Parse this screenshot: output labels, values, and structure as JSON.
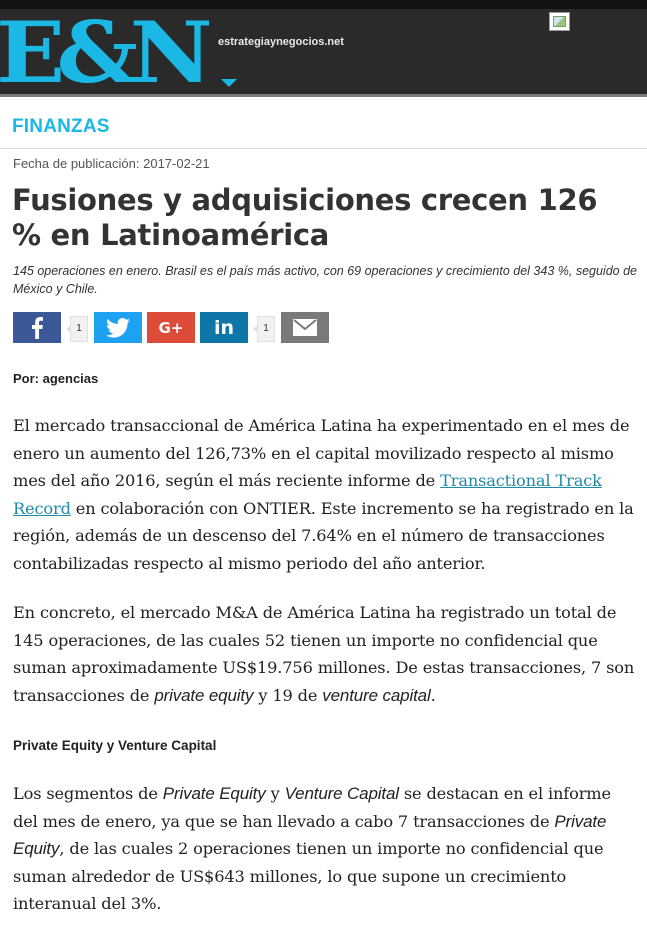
{
  "header": {
    "logo": "E&N",
    "site_url": "estrategiaynegocios.net"
  },
  "section": {
    "label": "FINANZAS"
  },
  "article": {
    "pubdate_label": "Fecha de publicación:",
    "pubdate_value": "2017-02-21",
    "title": "Fusiones y adquisiciones crecen 126 % en Latinoamérica",
    "summary": "145 operaciones en enero. Brasil es el país más activo, con 69 operaciones y crecimiento del 343 %, seguido de México y Chile.",
    "byline": "Por: agencias",
    "p1_a": "El mercado transaccional de América Latina ha experimentado en el mes de enero un aumento del 126,73% en el capital movilizado respecto al mismo mes del año 2016, según el más reciente informe de ",
    "p1_link": "Transactional Track Record",
    "p1_b": " en colaboración con ONTIER. Este incremento se ha registrado en la región, además de un descenso del 7.64% en el número de transacciones contabilizadas respecto al mismo periodo del año anterior.",
    "p2_a": "En concreto, el mercado M&A de América Latina ha registrado un total de 145 operaciones, de las cuales 52 tienen un importe no confidencial que suman aproximadamente US$19.756 millones. De estas transacciones, 7 son transacciones de ",
    "p2_em1": "private equity",
    "p2_b": " y 19 de ",
    "p2_em2": "venture capital",
    "p2_c": ".",
    "subhead": "Private Equity y Venture Capital",
    "p3_a": "Los segmentos de ",
    "p3_em1": "Private Equity",
    "p3_b": " y ",
    "p3_em2": "Venture Capital",
    "p3_c": " se destacan en el informe del mes de enero, ya que se han llevado a cabo 7 transacciones de ",
    "p3_em3": "Private Equity",
    "p3_d": ", de las cuales 2 operaciones tienen un importe no confidencial que suman alrededor de US$643 millones, lo que supone un crecimiento interanual del 3%."
  },
  "share": {
    "facebook": {
      "icon": "facebook-icon",
      "color": "#3b5998",
      "count": "1"
    },
    "twitter": {
      "icon": "twitter-icon",
      "color": "#1da1f2"
    },
    "googleplus": {
      "icon": "google-plus-icon",
      "color": "#dd4b39",
      "label": "G+"
    },
    "linkedin": {
      "icon": "linkedin-icon",
      "color": "#0e76a8",
      "label": "in",
      "count": "1"
    },
    "email": {
      "icon": "email-icon",
      "color": "#7a7a7a"
    }
  },
  "colors": {
    "brand": "#1bb8e6",
    "header_bg": "#2a2a2a",
    "link": "#1f8aa8"
  }
}
